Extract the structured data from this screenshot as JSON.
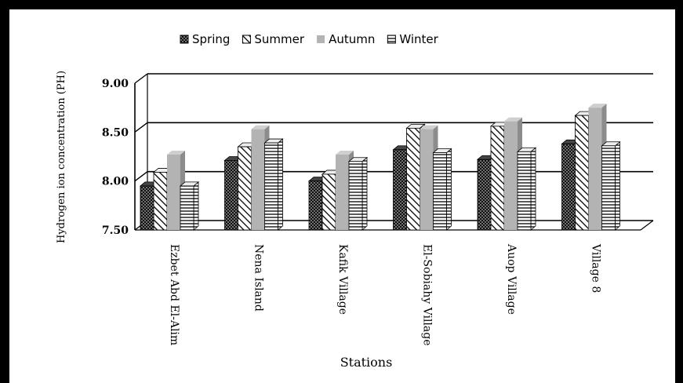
{
  "chart_data": {
    "type": "bar",
    "title": "",
    "xlabel": "Stations",
    "ylabel": "Hydrogen ion concentration (PH)",
    "ylim": [
      7.5,
      9.0
    ],
    "yticks": [
      "7.50",
      "8.00",
      "8.50",
      "9.00"
    ],
    "grid": true,
    "legend_position": "top",
    "categories": [
      "Ezbet Abd El-Alim",
      "Nena Island",
      "Kafik Village",
      "El-Sobiahy Village",
      "Auop Village",
      "Village 8"
    ],
    "series": [
      {
        "name": "Spring",
        "values": [
          7.95,
          8.21,
          8.0,
          8.32,
          8.22,
          8.38
        ],
        "pattern": "dots",
        "color": "#111111"
      },
      {
        "name": "Summer",
        "values": [
          8.09,
          8.35,
          8.07,
          8.54,
          8.56,
          8.67
        ],
        "pattern": "diagonal",
        "color": "#ffffff"
      },
      {
        "name": "Autumn",
        "values": [
          8.27,
          8.53,
          8.27,
          8.53,
          8.61,
          8.75
        ],
        "pattern": "solid",
        "color": "#b3b3b3"
      },
      {
        "name": "Winter",
        "values": [
          7.95,
          8.39,
          8.2,
          8.29,
          8.3,
          8.36
        ],
        "pattern": "horizontal",
        "color": "#ffffff"
      }
    ]
  }
}
